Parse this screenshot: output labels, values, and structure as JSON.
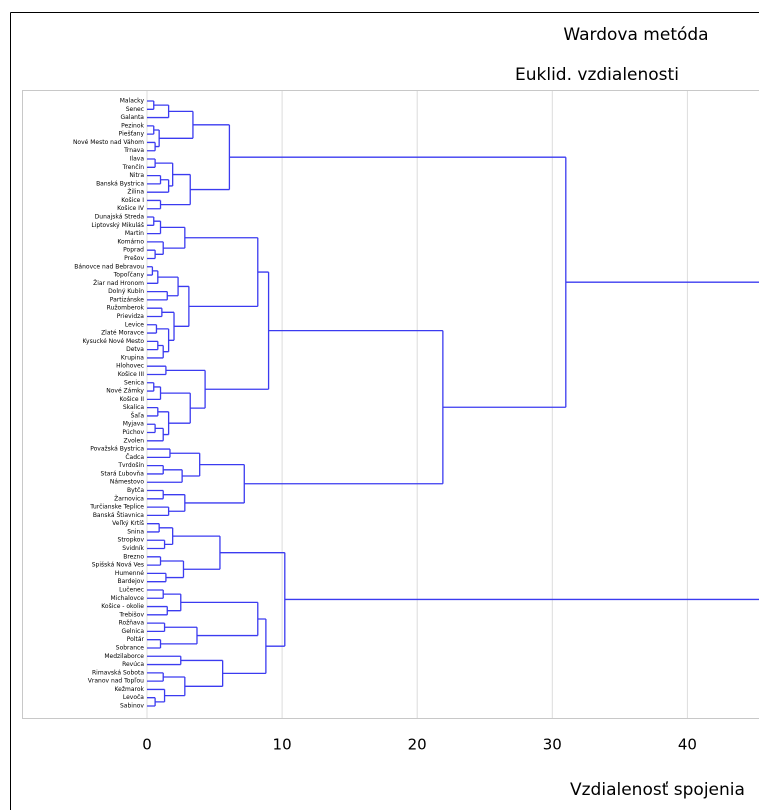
{
  "chart_data": {
    "type": "dendrogram",
    "title": "Wardova metóda",
    "subtitle": "Euklid. vzdialenosti",
    "xlabel": "Vzdialenosť spojenia",
    "color": "#3b3bf0",
    "xlim": [
      0,
      45.3
    ],
    "xticks": [
      0,
      10,
      20,
      30,
      40
    ],
    "grid": true,
    "clusters": [
      {
        "height": 31,
        "children": [
          {
            "height": 6.1,
            "children": [
              {
                "height": 3.4,
                "children": [
                  {
                    "height": 1.6,
                    "children": [
                      {
                        "height": 0.5,
                        "children": [
                          "Malacky",
                          "Senec"
                        ]
                      },
                      "Galanta"
                    ]
                  },
                  {
                    "height": 0.9,
                    "children": [
                      {
                        "height": 0.5,
                        "children": [
                          "Pezinok",
                          "Piešťany"
                        ]
                      },
                      {
                        "height": 0.6,
                        "children": [
                          "Nové Mesto nad Váhom",
                          "Trnava"
                        ]
                      }
                    ]
                  }
                ]
              },
              {
                "height": 3.2,
                "children": [
                  {
                    "height": 1.9,
                    "children": [
                      {
                        "height": 0.6,
                        "children": [
                          "Ilava",
                          "Trenčín"
                        ]
                      },
                      {
                        "height": 1.6,
                        "children": [
                          {
                            "height": 1.0,
                            "children": [
                              "Nitra",
                              "Banská Bystrica"
                            ]
                          },
                          "Žilina"
                        ]
                      }
                    ]
                  },
                  {
                    "height": 1.0,
                    "children": [
                      "Košice I",
                      "Košice IV"
                    ]
                  }
                ]
              }
            ]
          },
          {
            "height": 21.9,
            "children": [
              {
                "height": 9.0,
                "children": [
                  {
                    "height": 8.2,
                    "children": [
                      {
                        "height": 2.8,
                        "children": [
                          {
                            "height": 1.0,
                            "children": [
                              {
                                "height": 0.5,
                                "children": [
                                  "Dunajská Streda",
                                  "Liptovský Mikuláš"
                                ]
                              },
                              "Martin"
                            ]
                          },
                          {
                            "height": 1.2,
                            "children": [
                              "Komárno",
                              {
                                "height": 0.6,
                                "children": [
                                  "Poprad",
                                  "Prešov"
                                ]
                              }
                            ]
                          }
                        ]
                      },
                      {
                        "height": 3.1,
                        "children": [
                          {
                            "height": 2.3,
                            "children": [
                              {
                                "height": 0.8,
                                "children": [
                                  {
                                    "height": 0.4,
                                    "children": [
                                      "Bánovce nad Bebravou",
                                      "Topoľčany"
                                    ]
                                  },
                                  "Žiar nad Hronom"
                                ]
                              },
                              {
                                "height": 1.5,
                                "children": [
                                  "Dolný Kubín",
                                  "Partizánske"
                                ]
                              }
                            ]
                          },
                          {
                            "height": 2.0,
                            "children": [
                              {
                                "height": 1.1,
                                "children": [
                                  "Ružomberok",
                                  "Prievidza"
                                ]
                              },
                              {
                                "height": 1.6,
                                "children": [
                                  {
                                    "height": 0.7,
                                    "children": [
                                      "Levice",
                                      "Zlaté Moravce"
                                    ]
                                  },
                                  {
                                    "height": 1.2,
                                    "children": [
                                      {
                                        "height": 0.8,
                                        "children": [
                                          "Kysucké Nové Mesto",
                                          "Detva"
                                        ]
                                      },
                                      "Krupina"
                                    ]
                                  }
                                ]
                              }
                            ]
                          }
                        ]
                      }
                    ]
                  },
                  {
                    "height": 4.3,
                    "children": [
                      {
                        "height": 1.4,
                        "children": [
                          "Hlohovec",
                          "Košice III"
                        ]
                      },
                      {
                        "height": 3.2,
                        "children": [
                          {
                            "height": 1.0,
                            "children": [
                              {
                                "height": 0.5,
                                "children": [
                                  "Senica",
                                  "Nové Zámky"
                                ]
                              },
                              "Košice II"
                            ]
                          },
                          {
                            "height": 1.6,
                            "children": [
                              {
                                "height": 0.8,
                                "children": [
                                  "Skalica",
                                  "Šaľa"
                                ]
                              },
                              {
                                "height": 1.2,
                                "children": [
                                  {
                                    "height": 0.6,
                                    "children": [
                                      "Myjava",
                                      "Púchov"
                                    ]
                                  },
                                  "Zvolen"
                                ]
                              }
                            ]
                          }
                        ]
                      }
                    ]
                  }
                ]
              },
              {
                "height": 7.2,
                "children": [
                  {
                    "height": 3.9,
                    "children": [
                      {
                        "height": 1.7,
                        "children": [
                          "Považská Bystrica",
                          "Čadca"
                        ]
                      },
                      {
                        "height": 2.6,
                        "children": [
                          {
                            "height": 1.2,
                            "children": [
                              "Tvrdošín",
                              "Stará Ľubovňa"
                            ]
                          },
                          "Námestovo"
                        ]
                      }
                    ]
                  },
                  {
                    "height": 2.8,
                    "children": [
                      {
                        "height": 1.2,
                        "children": [
                          "Bytča",
                          "Žarnovica"
                        ]
                      },
                      {
                        "height": 1.6,
                        "children": [
                          "Turčianske Teplice",
                          "Banská Štiavnica"
                        ]
                      }
                    ]
                  }
                ]
              }
            ]
          }
        ]
      },
      {
        "height": 10.2,
        "children": [
          {
            "height": 5.4,
            "children": [
              {
                "height": 1.9,
                "children": [
                  {
                    "height": 0.9,
                    "children": [
                      "Veľký Krtíš",
                      "Snina"
                    ]
                  },
                  {
                    "height": 1.3,
                    "children": [
                      "Stropkov",
                      "Svidník"
                    ]
                  }
                ]
              },
              {
                "height": 2.7,
                "children": [
                  {
                    "height": 1.0,
                    "children": [
                      "Brezno",
                      "Spišská Nová Ves"
                    ]
                  },
                  {
                    "height": 1.4,
                    "children": [
                      "Humenné",
                      "Bardejov"
                    ]
                  }
                ]
              }
            ]
          },
          {
            "height": 8.8,
            "children": [
              {
                "height": 8.2,
                "children": [
                  {
                    "height": 2.5,
                    "children": [
                      {
                        "height": 1.2,
                        "children": [
                          "Lučenec",
                          "Michalovce"
                        ]
                      },
                      {
                        "height": 1.5,
                        "children": [
                          "Košice - okolie",
                          "Trebišov"
                        ]
                      }
                    ]
                  },
                  {
                    "height": 3.7,
                    "children": [
                      {
                        "height": 1.3,
                        "children": [
                          "Rožňava",
                          "Gelnica"
                        ]
                      },
                      {
                        "height": 1.0,
                        "children": [
                          "Poltár",
                          "Sobrance"
                        ]
                      }
                    ]
                  }
                ]
              },
              {
                "height": 5.6,
                "children": [
                  {
                    "height": 2.5,
                    "children": [
                      "Medzilaborce",
                      "Revúca"
                    ]
                  },
                  {
                    "height": 2.8,
                    "children": [
                      {
                        "height": 1.2,
                        "children": [
                          "Rimavská Sobota",
                          "Vranov nad Topľou"
                        ]
                      },
                      {
                        "height": 1.3,
                        "children": [
                          "Kežmarok",
                          {
                            "height": 0.6,
                            "children": [
                              "Levoča",
                              "Sabinov"
                            ]
                          }
                        ]
                      }
                    ]
                  }
                ]
              }
            ]
          }
        ]
      }
    ]
  }
}
